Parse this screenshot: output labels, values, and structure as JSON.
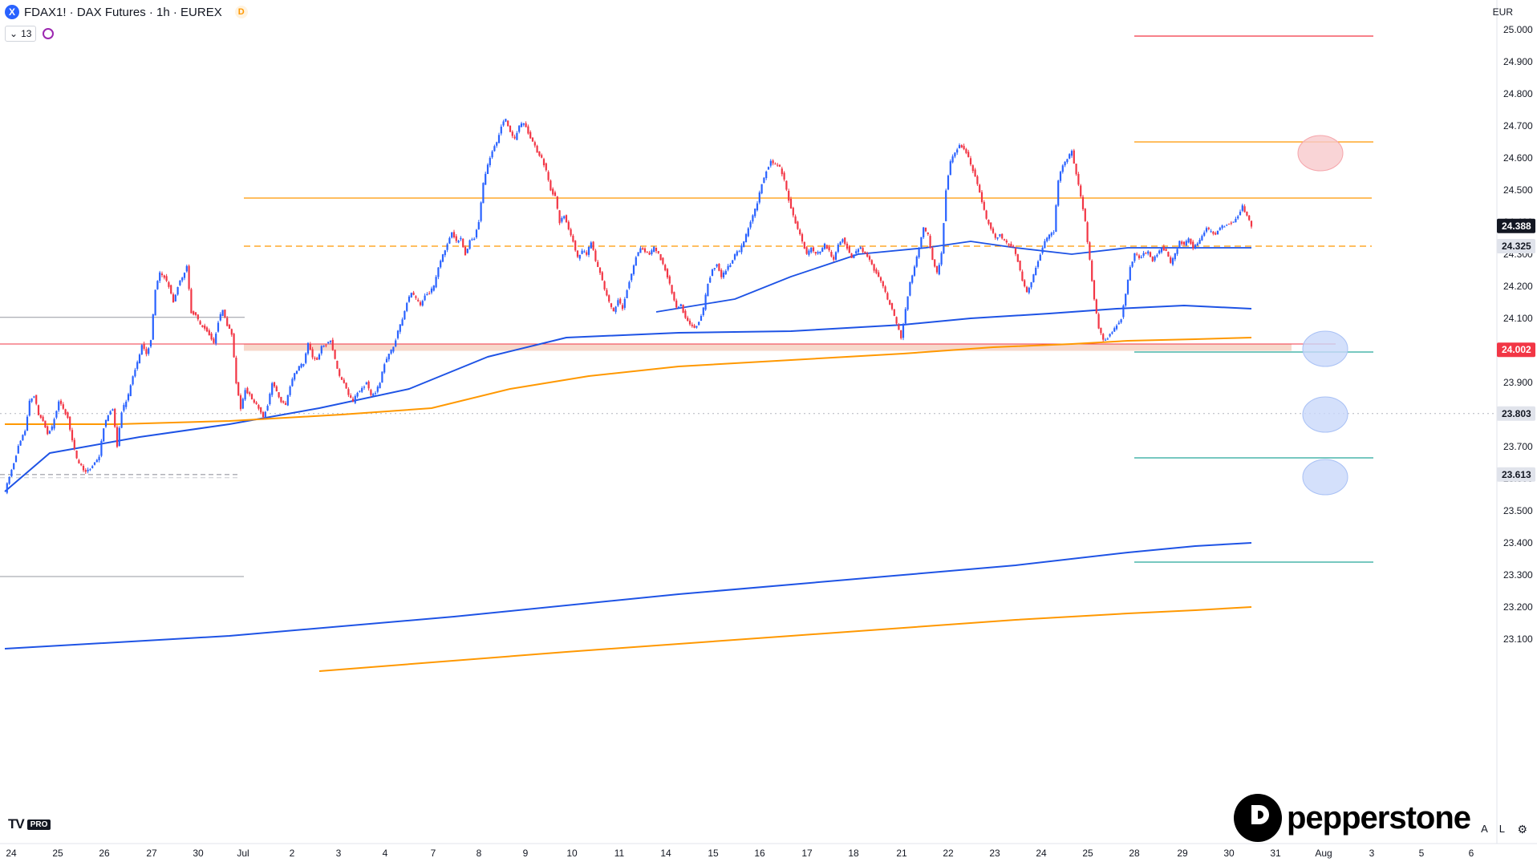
{
  "header": {
    "symbol_icon": "X",
    "title": "FDAX1! · DAX Futures · 1h · EUREX",
    "badge": "D",
    "collapse_icon": "chevron-down-icon",
    "indicator_count": "13",
    "refresh_icon": "refresh-icon"
  },
  "currency": "EUR",
  "branding": {
    "tv_mark": "TV",
    "tv_badge": "PRO",
    "watermark": "pepperstone"
  },
  "bottom_controls": {
    "auto": "A",
    "log": "L",
    "settings_icon": "gear-icon"
  },
  "colors": {
    "up": "#2962ff",
    "down": "#f23645",
    "orange": "#ff9800",
    "ma_blue": "#1e53e5",
    "green": "#26a69a",
    "red_line": "#f23645",
    "zone_red": "#f8c9cc",
    "zone_blue": "#c9d8fa"
  },
  "chart_data": {
    "type": "candlestick",
    "ylim": [
      23030,
      25050
    ],
    "y_ticks": [
      25000,
      24900,
      24800,
      24700,
      24600,
      24500,
      24400,
      24300,
      24200,
      24100,
      24000,
      23900,
      23800,
      23700,
      23600,
      23500,
      23400,
      23300,
      23200,
      23100
    ],
    "y_tick_labels": [
      "25.000",
      "24.900",
      "24.800",
      "24.700",
      "24.600",
      "24.500",
      "24.400",
      "24.300",
      "24.200",
      "24.100",
      "24.000",
      "23.900",
      "23.800",
      "23.700",
      "23.600",
      "23.500",
      "23.400",
      "23.300",
      "23.200",
      "23.100"
    ],
    "x_ticks": [
      "24",
      "25",
      "26",
      "27",
      "30",
      "Jul",
      "2",
      "3",
      "4",
      "7",
      "8",
      "9",
      "10",
      "11",
      "14",
      "15",
      "16",
      "17",
      "18",
      "21",
      "22",
      "23",
      "24",
      "25",
      "28",
      "29",
      "30",
      "31",
      "Aug",
      "3",
      "5",
      "6"
    ],
    "price_labels": [
      {
        "label": "24.388",
        "value": 24388,
        "style": "last"
      },
      {
        "label": "24.325",
        "value": 24325,
        "style": "grey"
      },
      {
        "label": "24.002",
        "value": 24002,
        "style": "red"
      },
      {
        "label": "23.803",
        "value": 23803,
        "style": "grey"
      },
      {
        "label": "23.613",
        "value": 23613,
        "style": "grey"
      }
    ],
    "levels": [
      {
        "name": "resistance",
        "value": 24475,
        "style": "orange-solid"
      },
      {
        "name": "mid",
        "value": 24325,
        "style": "orange-dashed"
      },
      {
        "name": "support",
        "value": 24010,
        "style": "salmon-band"
      },
      {
        "name": "support-red",
        "value": 24020,
        "style": "red-thin"
      },
      {
        "name": "swing-high",
        "value": 24103,
        "style": "grey"
      },
      {
        "name": "swing-low",
        "value": 23295,
        "style": "grey"
      },
      {
        "name": "dotted-23613",
        "value": 23613,
        "style": "grey-dashed"
      },
      {
        "name": "dotted-23803",
        "value": 23803,
        "style": "grey-dotted"
      }
    ],
    "targets": [
      {
        "value": 24980,
        "color": "red"
      },
      {
        "value": 24650,
        "color": "orange"
      },
      {
        "value": 23995,
        "color": "green"
      },
      {
        "value": 23665,
        "color": "green"
      },
      {
        "value": 23340,
        "color": "green"
      }
    ],
    "zones": [
      {
        "value": 24615,
        "color": "red"
      },
      {
        "value": 24005,
        "color": "blue"
      },
      {
        "value": 23800,
        "color": "blue"
      },
      {
        "value": 23605,
        "color": "blue"
      }
    ],
    "path_points": [
      [
        0,
        23560
      ],
      [
        8,
        23650
      ],
      [
        12,
        23700
      ],
      [
        18,
        23750
      ],
      [
        22,
        23840
      ],
      [
        26,
        23860
      ],
      [
        30,
        23800
      ],
      [
        34,
        23780
      ],
      [
        38,
        23740
      ],
      [
        42,
        23760
      ],
      [
        48,
        23840
      ],
      [
        52,
        23820
      ],
      [
        56,
        23790
      ],
      [
        60,
        23720
      ],
      [
        64,
        23660
      ],
      [
        68,
        23640
      ],
      [
        72,
        23620
      ],
      [
        76,
        23630
      ],
      [
        80,
        23650
      ],
      [
        84,
        23670
      ],
      [
        88,
        23760
      ],
      [
        92,
        23800
      ],
      [
        96,
        23820
      ],
      [
        100,
        23700
      ],
      [
        104,
        23810
      ],
      [
        110,
        23860
      ],
      [
        114,
        23920
      ],
      [
        118,
        23960
      ],
      [
        122,
        24020
      ],
      [
        126,
        23990
      ],
      [
        130,
        24030
      ],
      [
        134,
        24190
      ],
      [
        138,
        24240
      ],
      [
        142,
        24230
      ],
      [
        146,
        24200
      ],
      [
        150,
        24150
      ],
      [
        154,
        24200
      ],
      [
        158,
        24230
      ],
      [
        162,
        24260
      ],
      [
        166,
        24120
      ],
      [
        170,
        24110
      ],
      [
        174,
        24080
      ],
      [
        178,
        24070
      ],
      [
        182,
        24050
      ],
      [
        186,
        24020
      ],
      [
        190,
        24090
      ],
      [
        194,
        24130
      ],
      [
        198,
        24080
      ],
      [
        202,
        24050
      ],
      [
        206,
        23900
      ],
      [
        210,
        23820
      ],
      [
        214,
        23880
      ],
      [
        218,
        23860
      ],
      [
        222,
        23840
      ],
      [
        226,
        23820
      ],
      [
        230,
        23790
      ],
      [
        234,
        23830
      ],
      [
        238,
        23900
      ],
      [
        242,
        23870
      ],
      [
        246,
        23840
      ],
      [
        250,
        23830
      ],
      [
        254,
        23890
      ],
      [
        258,
        23930
      ],
      [
        262,
        23950
      ],
      [
        266,
        23960
      ],
      [
        270,
        24020
      ],
      [
        274,
        23980
      ],
      [
        278,
        23970
      ],
      [
        282,
        24010
      ],
      [
        286,
        24020
      ],
      [
        290,
        24030
      ],
      [
        294,
        23970
      ],
      [
        298,
        23920
      ],
      [
        302,
        23900
      ],
      [
        306,
        23860
      ],
      [
        310,
        23840
      ],
      [
        314,
        23870
      ],
      [
        318,
        23880
      ],
      [
        322,
        23900
      ],
      [
        326,
        23860
      ],
      [
        330,
        23870
      ],
      [
        334,
        23900
      ],
      [
        338,
        23960
      ],
      [
        342,
        23990
      ],
      [
        346,
        24010
      ],
      [
        350,
        24060
      ],
      [
        354,
        24100
      ],
      [
        358,
        24150
      ],
      [
        362,
        24180
      ],
      [
        366,
        24160
      ],
      [
        370,
        24140
      ],
      [
        374,
        24170
      ],
      [
        378,
        24180
      ],
      [
        382,
        24200
      ],
      [
        386,
        24260
      ],
      [
        390,
        24300
      ],
      [
        394,
        24330
      ],
      [
        398,
        24370
      ],
      [
        402,
        24340
      ],
      [
        406,
        24350
      ],
      [
        410,
        24300
      ],
      [
        414,
        24340
      ],
      [
        418,
        24350
      ],
      [
        422,
        24400
      ],
      [
        426,
        24520
      ],
      [
        430,
        24580
      ],
      [
        434,
        24620
      ],
      [
        438,
        24650
      ],
      [
        442,
        24700
      ],
      [
        446,
        24720
      ],
      [
        450,
        24680
      ],
      [
        454,
        24660
      ],
      [
        458,
        24700
      ],
      [
        462,
        24710
      ],
      [
        466,
        24680
      ],
      [
        470,
        24650
      ],
      [
        474,
        24620
      ],
      [
        478,
        24600
      ],
      [
        482,
        24560
      ],
      [
        486,
        24500
      ],
      [
        490,
        24480
      ],
      [
        494,
        24400
      ],
      [
        498,
        24420
      ],
      [
        502,
        24380
      ],
      [
        506,
        24340
      ],
      [
        510,
        24290
      ],
      [
        514,
        24310
      ],
      [
        518,
        24300
      ],
      [
        522,
        24340
      ],
      [
        526,
        24280
      ],
      [
        530,
        24240
      ],
      [
        534,
        24190
      ],
      [
        538,
        24150
      ],
      [
        542,
        24120
      ],
      [
        546,
        24160
      ],
      [
        550,
        24130
      ],
      [
        554,
        24190
      ],
      [
        558,
        24240
      ],
      [
        562,
        24290
      ],
      [
        566,
        24320
      ],
      [
        570,
        24310
      ],
      [
        574,
        24300
      ],
      [
        578,
        24320
      ],
      [
        582,
        24300
      ],
      [
        586,
        24270
      ],
      [
        590,
        24230
      ],
      [
        594,
        24180
      ],
      [
        598,
        24130
      ],
      [
        602,
        24140
      ],
      [
        606,
        24100
      ],
      [
        610,
        24080
      ],
      [
        614,
        24070
      ],
      [
        618,
        24090
      ],
      [
        622,
        24130
      ],
      [
        626,
        24210
      ],
      [
        630,
        24250
      ],
      [
        634,
        24270
      ],
      [
        638,
        24230
      ],
      [
        642,
        24250
      ],
      [
        646,
        24270
      ],
      [
        650,
        24300
      ],
      [
        654,
        24310
      ],
      [
        658,
        24340
      ],
      [
        662,
        24380
      ],
      [
        666,
        24420
      ],
      [
        670,
        24460
      ],
      [
        674,
        24520
      ],
      [
        678,
        24560
      ],
      [
        682,
        24590
      ],
      [
        686,
        24580
      ],
      [
        690,
        24570
      ],
      [
        694,
        24530
      ],
      [
        698,
        24470
      ],
      [
        702,
        24420
      ],
      [
        706,
        24380
      ],
      [
        710,
        24340
      ],
      [
        714,
        24300
      ],
      [
        718,
        24320
      ],
      [
        722,
        24300
      ],
      [
        726,
        24310
      ],
      [
        730,
        24330
      ],
      [
        734,
        24310
      ],
      [
        738,
        24280
      ],
      [
        742,
        24330
      ],
      [
        746,
        24350
      ],
      [
        750,
        24320
      ],
      [
        754,
        24290
      ],
      [
        758,
        24310
      ],
      [
        762,
        24320
      ],
      [
        766,
        24300
      ],
      [
        770,
        24280
      ],
      [
        774,
        24250
      ],
      [
        778,
        24230
      ],
      [
        782,
        24200
      ],
      [
        786,
        24160
      ],
      [
        790,
        24130
      ],
      [
        794,
        24080
      ],
      [
        798,
        24040
      ],
      [
        802,
        24130
      ],
      [
        806,
        24210
      ],
      [
        810,
        24260
      ],
      [
        814,
        24320
      ],
      [
        818,
        24380
      ],
      [
        822,
        24360
      ],
      [
        826,
        24280
      ],
      [
        830,
        24240
      ],
      [
        834,
        24300
      ],
      [
        838,
        24500
      ],
      [
        842,
        24590
      ],
      [
        846,
        24620
      ],
      [
        850,
        24640
      ],
      [
        854,
        24630
      ],
      [
        858,
        24600
      ],
      [
        862,
        24560
      ],
      [
        866,
        24520
      ],
      [
        870,
        24460
      ],
      [
        874,
        24410
      ],
      [
        878,
        24380
      ],
      [
        882,
        24350
      ],
      [
        886,
        24360
      ],
      [
        890,
        24340
      ],
      [
        894,
        24330
      ],
      [
        898,
        24320
      ],
      [
        902,
        24280
      ],
      [
        906,
        24220
      ],
      [
        910,
        24180
      ],
      [
        914,
        24210
      ],
      [
        918,
        24260
      ],
      [
        922,
        24300
      ],
      [
        926,
        24340
      ],
      [
        930,
        24360
      ],
      [
        934,
        24370
      ],
      [
        938,
        24530
      ],
      [
        942,
        24580
      ],
      [
        946,
        24600
      ],
      [
        950,
        24620
      ],
      [
        954,
        24550
      ],
      [
        958,
        24480
      ],
      [
        962,
        24400
      ],
      [
        966,
        24280
      ],
      [
        970,
        24160
      ],
      [
        974,
        24070
      ],
      [
        978,
        24030
      ],
      [
        982,
        24040
      ],
      [
        986,
        24060
      ],
      [
        990,
        24080
      ],
      [
        994,
        24100
      ],
      [
        998,
        24180
      ],
      [
        1002,
        24260
      ],
      [
        1006,
        24300
      ],
      [
        1010,
        24290
      ],
      [
        1014,
        24300
      ],
      [
        1018,
        24310
      ],
      [
        1022,
        24280
      ],
      [
        1026,
        24300
      ],
      [
        1030,
        24320
      ],
      [
        1034,
        24310
      ],
      [
        1038,
        24270
      ],
      [
        1042,
        24300
      ],
      [
        1046,
        24340
      ],
      [
        1050,
        24330
      ],
      [
        1054,
        24350
      ],
      [
        1058,
        24320
      ],
      [
        1062,
        24330
      ],
      [
        1066,
        24360
      ],
      [
        1070,
        24380
      ],
      [
        1074,
        24370
      ],
      [
        1078,
        24360
      ],
      [
        1082,
        24385
      ],
      [
        1086,
        24390
      ],
      [
        1090,
        24395
      ],
      [
        1094,
        24400
      ],
      [
        1098,
        24420
      ],
      [
        1102,
        24450
      ],
      [
        1106,
        24420
      ],
      [
        1110,
        24388
      ]
    ],
    "ma_fast_blue": [
      [
        0,
        23560
      ],
      [
        40,
        23680
      ],
      [
        120,
        23730
      ],
      [
        200,
        23770
      ],
      [
        280,
        23820
      ],
      [
        360,
        23880
      ],
      [
        430,
        23980
      ],
      [
        500,
        24040
      ],
      [
        600,
        24055
      ],
      [
        700,
        24060
      ],
      [
        800,
        24080
      ],
      [
        860,
        24100
      ],
      [
        930,
        24115
      ],
      [
        990,
        24130
      ],
      [
        1050,
        24140
      ],
      [
        1110,
        24130
      ]
    ],
    "ma_fast_orange": [
      [
        0,
        23770
      ],
      [
        100,
        23770
      ],
      [
        200,
        23780
      ],
      [
        300,
        23800
      ],
      [
        380,
        23820
      ],
      [
        450,
        23880
      ],
      [
        520,
        23920
      ],
      [
        600,
        23950
      ],
      [
        700,
        23970
      ],
      [
        800,
        23990
      ],
      [
        880,
        24010
      ],
      [
        950,
        24020
      ],
      [
        1000,
        24030
      ],
      [
        1060,
        24035
      ],
      [
        1110,
        24040
      ]
    ],
    "ma_mid_blue": [
      [
        580,
        24120
      ],
      [
        650,
        24160
      ],
      [
        700,
        24230
      ],
      [
        760,
        24300
      ],
      [
        820,
        24320
      ],
      [
        860,
        24340
      ],
      [
        900,
        24320
      ],
      [
        950,
        24300
      ],
      [
        1000,
        24320
      ],
      [
        1060,
        24320
      ],
      [
        1110,
        24320
      ]
    ],
    "ma_slow_blue": [
      [
        0,
        23070
      ],
      [
        200,
        23110
      ],
      [
        400,
        23170
      ],
      [
        600,
        23240
      ],
      [
        800,
        23300
      ],
      [
        900,
        23330
      ],
      [
        1000,
        23370
      ],
      [
        1060,
        23390
      ],
      [
        1110,
        23400
      ]
    ],
    "ma_slow_orange": [
      [
        280,
        23000
      ],
      [
        500,
        23060
      ],
      [
        700,
        23110
      ],
      [
        900,
        23160
      ],
      [
        1000,
        23180
      ],
      [
        1060,
        23190
      ],
      [
        1110,
        23200
      ]
    ]
  }
}
